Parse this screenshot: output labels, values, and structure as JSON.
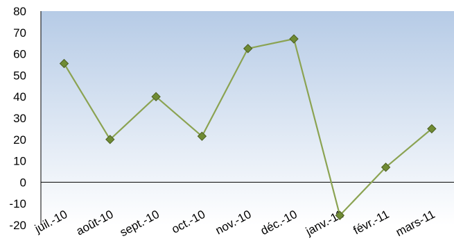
{
  "chart_data": {
    "type": "line",
    "title": "",
    "xlabel": "",
    "ylabel": "",
    "categories": [
      "juil.-10",
      "août-10",
      "sept.-10",
      "oct.-10",
      "nov.-10",
      "déc.-10",
      "janv.-11",
      "févr.-11",
      "mars-11"
    ],
    "series": [
      {
        "values": [
          55.5,
          20,
          40,
          21.5,
          62.5,
          67,
          -15.5,
          7,
          25
        ]
      }
    ],
    "ylim": [
      -20,
      80
    ],
    "yticks": [
      -20,
      -10,
      0,
      10,
      20,
      30,
      40,
      50,
      60,
      70,
      80
    ],
    "ytick_labels": [
      "-20",
      "-10",
      "0",
      "10",
      "20",
      "30",
      "40",
      "50",
      "60",
      "70",
      "80"
    ],
    "grid": false,
    "legend": "none",
    "colors": {
      "line": "#8ba352",
      "marker_fill": "#6f8b34",
      "marker_stroke": "#4b5e22",
      "bg_top": "#b6cbe6",
      "bg_bottom": "#ffffff",
      "zero_line": "#000000"
    }
  }
}
